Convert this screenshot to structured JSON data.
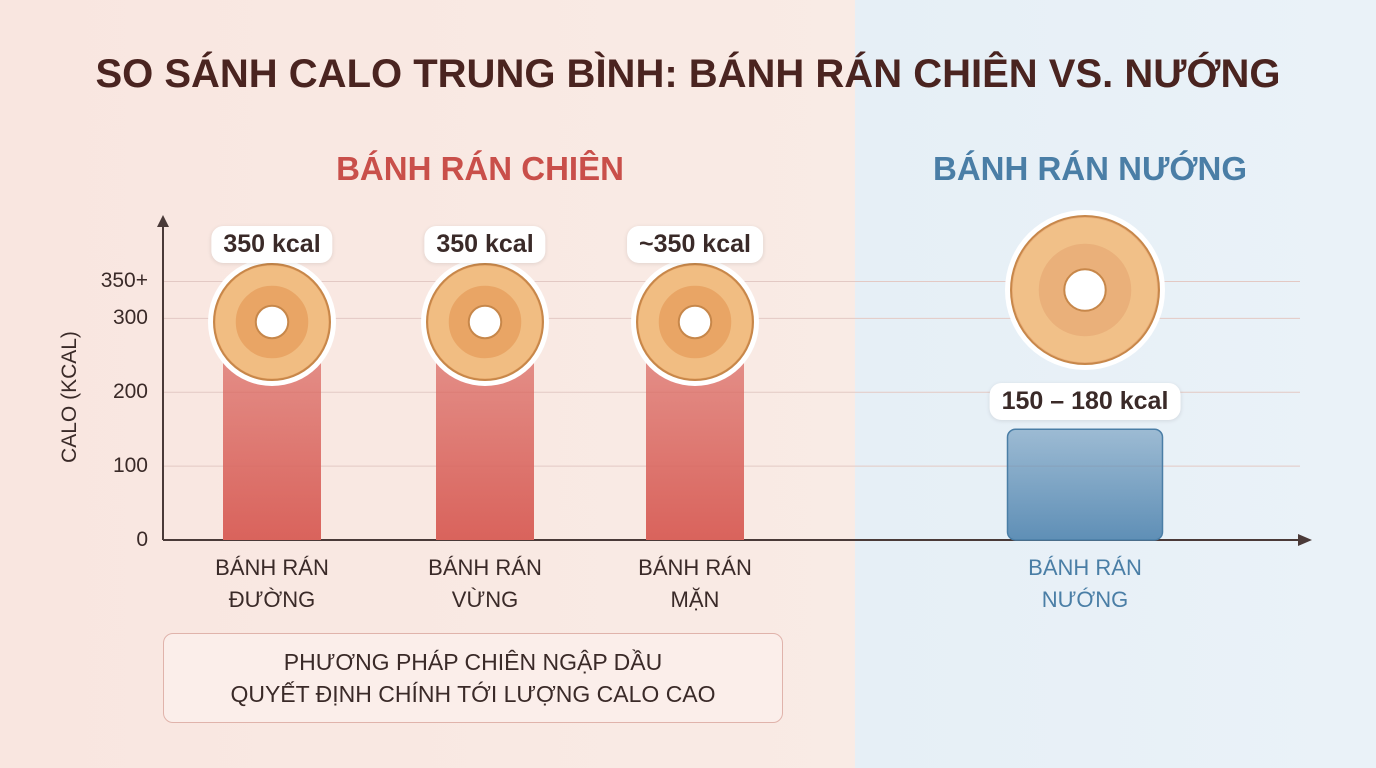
{
  "chart_data": {
    "type": "bar",
    "title": "SO SÁNH CALO TRUNG BÌNH: BÁNH RÁN CHIÊN VS. NƯỚNG",
    "groups": [
      {
        "name": "BÁNH RÁN CHIÊN",
        "color": "#c94f4a"
      },
      {
        "name": "BÁNH RÁN NƯỚNG",
        "color": "#4a7ea6"
      }
    ],
    "categories": [
      "BÁNH RÁN ĐƯỜNG",
      "BÁNH RÁN VỪNG",
      "BÁNH RÁN MẶN",
      "BÁNH RÁN NƯỚNG"
    ],
    "values": [
      350,
      350,
      350,
      150
    ],
    "value_labels": [
      "350 kcal",
      "350 kcal",
      "~350 kcal",
      "150 – 180 kcal"
    ],
    "colors": [
      "#d9635c",
      "#d9635c",
      "#d9635c",
      "#5f8fb6"
    ],
    "y_label": "CALO (KCAL)",
    "ylim": [
      0,
      440
    ],
    "yticks": [
      0,
      100,
      200,
      300,
      {
        "value": 350,
        "label": "350+"
      }
    ],
    "grid": true,
    "note": [
      "PHƯƠNG PHÁP CHIÊN NGẬP DẦU",
      "QUYẾT ĐỊNH CHÍNH TỚI LƯỢNG CALO CAO"
    ]
  }
}
